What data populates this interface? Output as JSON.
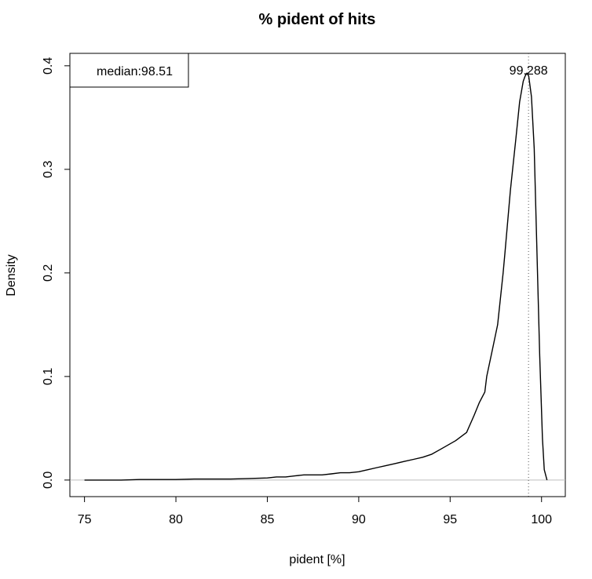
{
  "chart_data": {
    "type": "line",
    "title": "% pident of hits",
    "xlabel": "pident [%]",
    "ylabel": "Density",
    "xlim": [
      74.2,
      101.3
    ],
    "ylim": [
      -0.016,
      0.412
    ],
    "x_ticks": [
      75,
      80,
      85,
      90,
      95,
      100
    ],
    "x_tick_labels": [
      "75",
      "80",
      "85",
      "90",
      "95",
      "100"
    ],
    "y_ticks": [
      0.0,
      0.1,
      0.2,
      0.3,
      0.4
    ],
    "y_tick_labels": [
      "0.0",
      "0.1",
      "0.2",
      "0.3",
      "0.4"
    ],
    "baseline_y": 0,
    "mode_line_x": 99.288,
    "mode_label": "99.288",
    "legend": {
      "text": "median:98.51",
      "position": "top-left"
    },
    "colors": {
      "curve": "#000000",
      "baseline": "#bebebe",
      "mode_line": "#555555"
    },
    "series": [
      {
        "x": [
          75,
          76,
          77,
          78,
          79,
          80,
          81,
          82,
          83,
          84,
          85,
          85.5,
          86,
          86.5,
          87,
          87.5,
          88,
          88.5,
          89,
          89.5,
          90,
          90.5,
          91,
          91.5,
          92,
          92.5,
          93,
          93.5,
          94,
          94.5,
          95,
          95.3,
          95.6,
          95.9,
          96,
          96.3,
          96.6,
          96.9,
          97,
          97.3,
          97.6,
          97.9,
          98,
          98.3,
          98.6,
          98.8,
          99,
          99.1,
          99.2,
          99.3,
          99.45,
          99.6,
          99.75,
          99.9,
          100.05,
          100.15,
          100.3
        ],
        "y": [
          0.0,
          0.0,
          0.0,
          0.0005,
          0.0005,
          0.0005,
          0.001,
          0.001,
          0.001,
          0.0015,
          0.002,
          0.003,
          0.003,
          0.004,
          0.005,
          0.005,
          0.005,
          0.006,
          0.007,
          0.007,
          0.008,
          0.01,
          0.012,
          0.014,
          0.016,
          0.018,
          0.02,
          0.022,
          0.025,
          0.03,
          0.035,
          0.038,
          0.042,
          0.046,
          0.05,
          0.062,
          0.075,
          0.085,
          0.1,
          0.125,
          0.15,
          0.2,
          0.22,
          0.28,
          0.33,
          0.365,
          0.385,
          0.39,
          0.393,
          0.39,
          0.37,
          0.32,
          0.22,
          0.12,
          0.04,
          0.01,
          0.0
        ]
      }
    ]
  }
}
